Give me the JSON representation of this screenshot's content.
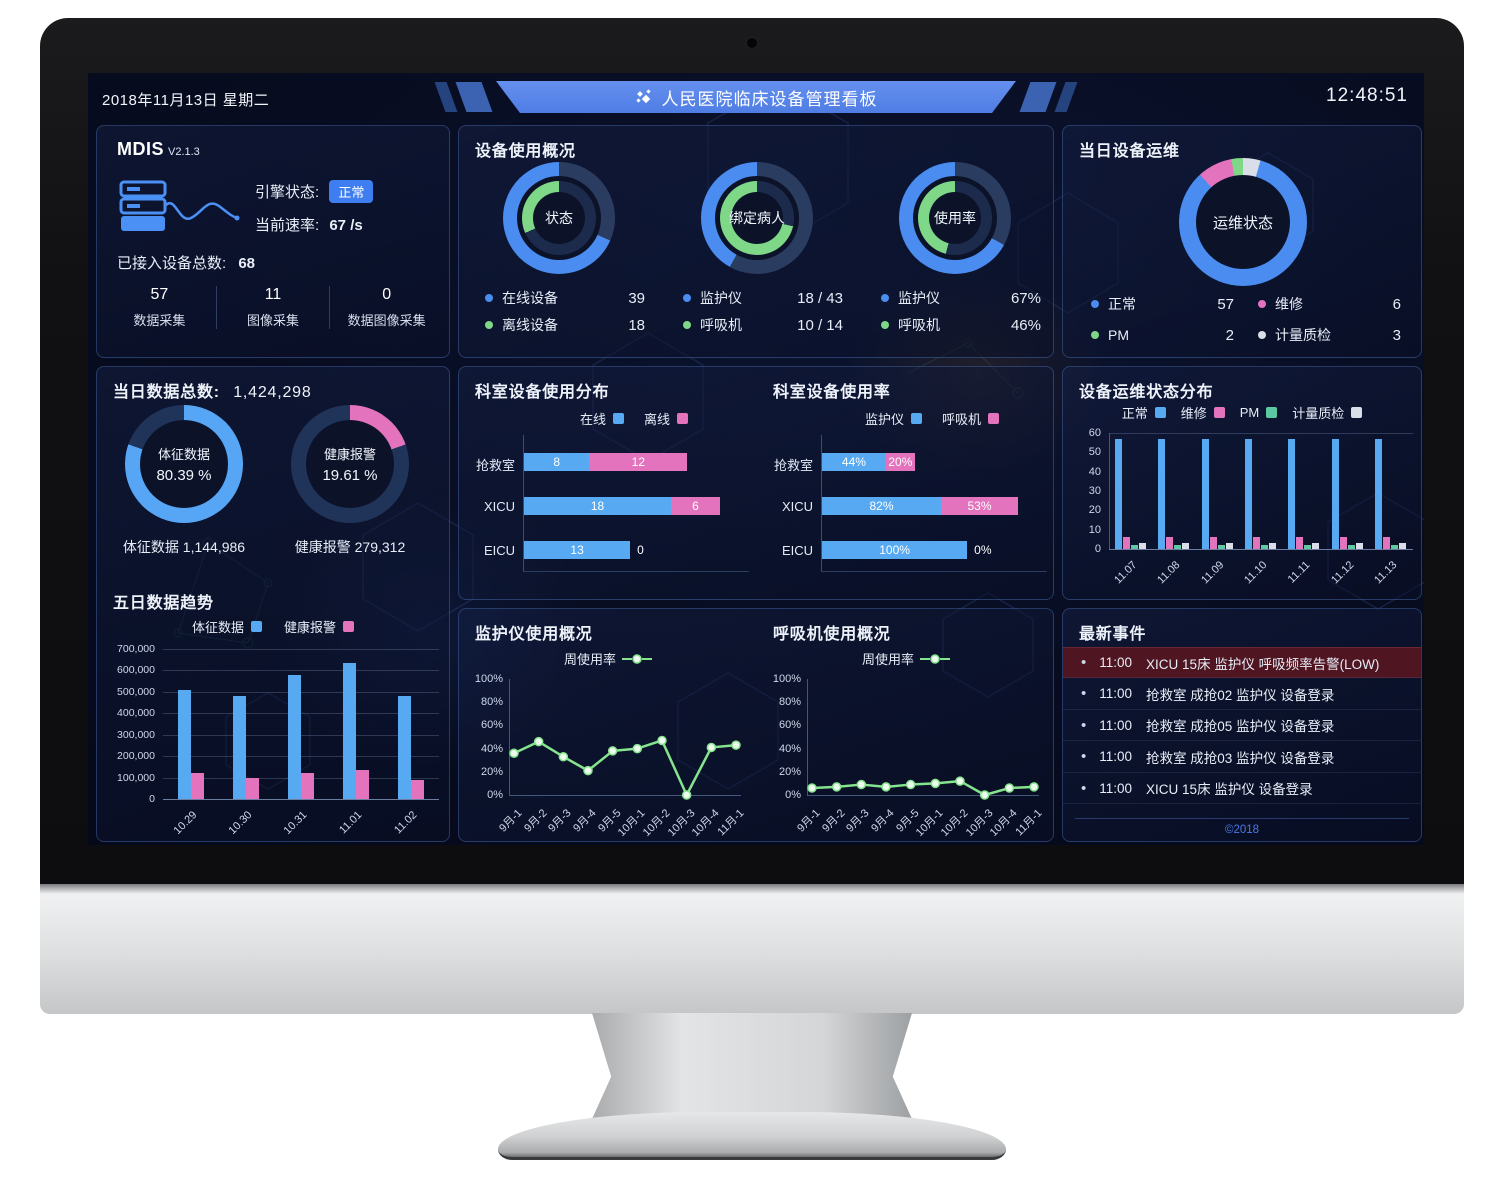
{
  "header": {
    "date": "2018年11月13日 星期二",
    "title": "人民医院临床设备管理看板",
    "time": "12:48:51"
  },
  "colors": {
    "blue": "#4a8cf0",
    "bar_blue": "#57aaf2",
    "green": "#7ed887",
    "teal": "#5cc9a2",
    "pink": "#e273bc",
    "white": "#d9dee8",
    "slate_outer": "#2a3c60",
    "slate_inner": "#1c2b4c",
    "rest_dark": "#20345a",
    "line_green": "#86e48e"
  },
  "mdis": {
    "title": "MDIS",
    "version": "V2.1.3",
    "engine_label": "引擎状态:",
    "engine_status": "正常",
    "rate_label": "当前速率:",
    "rate_value": "67 /s",
    "total_label": "已接入设备总数:",
    "total_value": "68",
    "stats": [
      {
        "value": "57",
        "label": "数据采集"
      },
      {
        "value": "11",
        "label": "图像采集"
      },
      {
        "value": "0",
        "label": "数据图像采集"
      }
    ]
  },
  "device_usage": {
    "title": "设备使用概况",
    "donuts": [
      {
        "center": "状态",
        "outer_pct": 68.4,
        "inner_pct": 31.6,
        "legend": [
          {
            "label": "在线设备",
            "value": "39",
            "color": "blue"
          },
          {
            "label": "离线设备",
            "value": "18",
            "color": "green"
          }
        ]
      },
      {
        "center": "绑定病人",
        "outer_pct": 41.9,
        "inner_pct": 71.4,
        "legend": [
          {
            "label": "监护仪",
            "value": "18 / 43",
            "color": "blue"
          },
          {
            "label": "呼吸机",
            "value": "10 / 14",
            "color": "green"
          }
        ]
      },
      {
        "center": "使用率",
        "outer_pct": 67,
        "inner_pct": 46,
        "legend": [
          {
            "label": "监护仪",
            "value": "67%",
            "color": "blue"
          },
          {
            "label": "呼吸机",
            "value": "46%",
            "color": "green"
          }
        ]
      }
    ]
  },
  "ops_today": {
    "title": "当日设备运维",
    "center": "运维状态",
    "segments": [
      {
        "label": "计量质检",
        "value": 3,
        "color": "white"
      },
      {
        "label": "正常",
        "value": 57,
        "color": "blue"
      },
      {
        "label": "维修",
        "value": 6,
        "color": "pink"
      },
      {
        "label": "PM",
        "value": 2,
        "color": "green"
      }
    ],
    "legend": [
      {
        "label": "正常",
        "value": "57",
        "color": "blue"
      },
      {
        "label": "维修",
        "value": "6",
        "color": "pink"
      },
      {
        "label": "PM",
        "value": "2",
        "color": "green"
      },
      {
        "label": "计量质检",
        "value": "3",
        "color": "white"
      }
    ]
  },
  "data_today": {
    "title_label": "当日数据总数:",
    "title_value": "1,424,298",
    "donuts": [
      {
        "line1": "体征数据",
        "line2": "80.39 %",
        "pct": 80.39,
        "color": "#57a6f5",
        "label": "体征数据",
        "value": "1,144,986"
      },
      {
        "line1": "健康报警",
        "line2": "19.61 %",
        "pct": 19.61,
        "color": "#e273bc",
        "label": "健康报警",
        "value": "279,312"
      }
    ]
  },
  "five_day": {
    "title": "五日数据趋势",
    "legend": [
      {
        "label": "体征数据",
        "color": "bar_blue"
      },
      {
        "label": "健康报警",
        "color": "pink"
      }
    ],
    "categories": [
      "10.29",
      "10.30",
      "10.31",
      "11.01",
      "11.02"
    ],
    "series": [
      {
        "name": "体征数据",
        "color": "bar_blue",
        "values": [
          510000,
          480000,
          580000,
          635000,
          480000
        ]
      },
      {
        "name": "健康报警",
        "color": "pink",
        "values": [
          120000,
          100000,
          120000,
          135000,
          90000
        ]
      }
    ],
    "ymax": 700000,
    "yticks": [
      "700,000",
      "600,000",
      "500,000",
      "400,000",
      "300,000",
      "200,000",
      "100,000",
      "0"
    ]
  },
  "dept_dist": {
    "title": "科室设备使用分布",
    "legend": [
      {
        "label": "在线",
        "color": "bar_blue"
      },
      {
        "label": "离线",
        "color": "pink"
      }
    ],
    "max": 24,
    "rows": [
      {
        "cat": "抢救室",
        "a": 8,
        "b": 12,
        "a_label": "8",
        "b_label": "12"
      },
      {
        "cat": "XICU",
        "a": 18,
        "b": 6,
        "a_label": "18",
        "b_label": "6"
      },
      {
        "cat": "EICU",
        "a": 13,
        "b": 0,
        "a_label": "13",
        "b_label": "0"
      }
    ]
  },
  "dept_rate": {
    "title": "科室设备使用率",
    "legend": [
      {
        "label": "监护仪",
        "color": "bar_blue"
      },
      {
        "label": "呼吸机",
        "color": "pink"
      }
    ],
    "max": 135,
    "rows": [
      {
        "cat": "抢救室",
        "a": 44,
        "b": 20,
        "a_label": "44%",
        "b_label": "20%"
      },
      {
        "cat": "XICU",
        "a": 82,
        "b": 53,
        "a_label": "82%",
        "b_label": "53%"
      },
      {
        "cat": "EICU",
        "a": 100,
        "b": 0,
        "a_label": "100%",
        "b_label": "0%"
      }
    ]
  },
  "ops_dist": {
    "title": "设备运维状态分布",
    "legend": [
      {
        "label": "正常",
        "color": "bar_blue"
      },
      {
        "label": "维修",
        "color": "pink"
      },
      {
        "label": "PM",
        "color": "teal"
      },
      {
        "label": "计量质检",
        "color": "white"
      }
    ],
    "categories": [
      "11.07",
      "11.08",
      "11.09",
      "11.10",
      "11.11",
      "11.12",
      "11.13"
    ],
    "series": [
      {
        "name": "正常",
        "color": "bar_blue",
        "values": [
          57,
          57,
          57,
          57,
          57,
          57,
          57
        ]
      },
      {
        "name": "维修",
        "color": "pink",
        "values": [
          6,
          6,
          6,
          6,
          6,
          6,
          6
        ]
      },
      {
        "name": "PM",
        "color": "teal",
        "values": [
          2,
          2,
          2,
          2,
          2,
          2,
          2
        ]
      },
      {
        "name": "计量质检",
        "color": "white",
        "values": [
          3,
          3,
          3,
          3,
          3,
          3,
          3
        ]
      }
    ],
    "ymax": 60,
    "yticks": [
      "60",
      "50",
      "40",
      "30",
      "20",
      "10",
      "0"
    ]
  },
  "monitor_usage": {
    "title": "监护仪使用概况",
    "legend": "周使用率",
    "x": [
      "9月-1",
      "9月-2",
      "9月-3",
      "9月-4",
      "9月-5",
      "10月-1",
      "10月-2",
      "10月-3",
      "10月-4",
      "11月-1"
    ],
    "values": [
      36,
      46,
      33,
      21,
      38,
      40,
      47,
      0,
      41,
      43
    ],
    "yticks": [
      "100%",
      "80%",
      "60%",
      "40%",
      "20%",
      "0%"
    ]
  },
  "vent_usage": {
    "title": "呼吸机使用概况",
    "legend": "周使用率",
    "x": [
      "9月-1",
      "9月-2",
      "9月-3",
      "9月-4",
      "9月-5",
      "10月-1",
      "10月-2",
      "10月-3",
      "10月-4",
      "11月-1"
    ],
    "values": [
      6,
      7,
      9,
      7,
      9,
      10,
      12,
      0,
      6,
      7
    ],
    "yticks": [
      "100%",
      "80%",
      "60%",
      "40%",
      "20%",
      "0%"
    ]
  },
  "events": {
    "title": "最新事件",
    "footer": "©2018",
    "rows": [
      {
        "time": "11:00",
        "text": "XICU 15床 监护仪 呼吸频率告警(LOW)",
        "alert": true
      },
      {
        "time": "11:00",
        "text": "抢救室 成抢02 监护仪 设备登录",
        "alert": false
      },
      {
        "time": "11:00",
        "text": "抢救室 成抢05 监护仪 设备登录",
        "alert": false
      },
      {
        "time": "11:00",
        "text": "抢救室 成抢03 监护仪 设备登录",
        "alert": false
      },
      {
        "time": "11:00",
        "text": "XICU 15床 监护仪 设备登录",
        "alert": false
      }
    ]
  }
}
